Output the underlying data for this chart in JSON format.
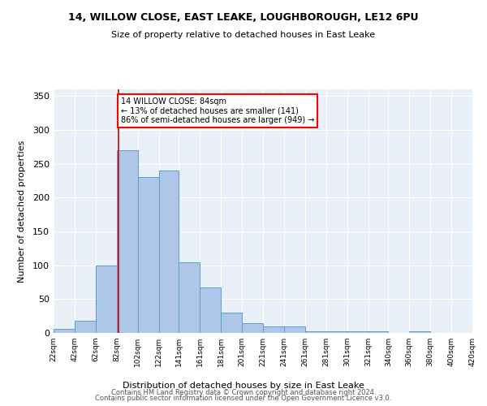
{
  "title1": "14, WILLOW CLOSE, EAST LEAKE, LOUGHBOROUGH, LE12 6PU",
  "title2": "Size of property relative to detached houses in East Leake",
  "xlabel": "Distribution of detached houses by size in East Leake",
  "ylabel": "Number of detached properties",
  "footer1": "Contains HM Land Registry data © Crown copyright and database right 2024.",
  "footer2": "Contains public sector information licensed under the Open Government Licence v3.0.",
  "annotation_line1": "14 WILLOW CLOSE: 84sqm",
  "annotation_line2": "← 13% of detached houses are smaller (141)",
  "annotation_line3": "86% of semi-detached houses are larger (949) →",
  "property_size": 84,
  "bar_color": "#aec6e8",
  "bar_edge_color": "#5a9fd4",
  "redline_color": "#cc0000",
  "background_color": "#eaf0f8",
  "bins": [
    22,
    42,
    62,
    82,
    102,
    122,
    141,
    161,
    181,
    201,
    221,
    241,
    261,
    281,
    301,
    321,
    340,
    360,
    380,
    400,
    420
  ],
  "counts": [
    6,
    18,
    100,
    270,
    230,
    240,
    105,
    67,
    30,
    15,
    10,
    10,
    2,
    3,
    3,
    2,
    0,
    2,
    0,
    0,
    2
  ],
  "ylim": [
    0,
    360
  ],
  "yticks": [
    0,
    50,
    100,
    150,
    200,
    250,
    300,
    350
  ]
}
